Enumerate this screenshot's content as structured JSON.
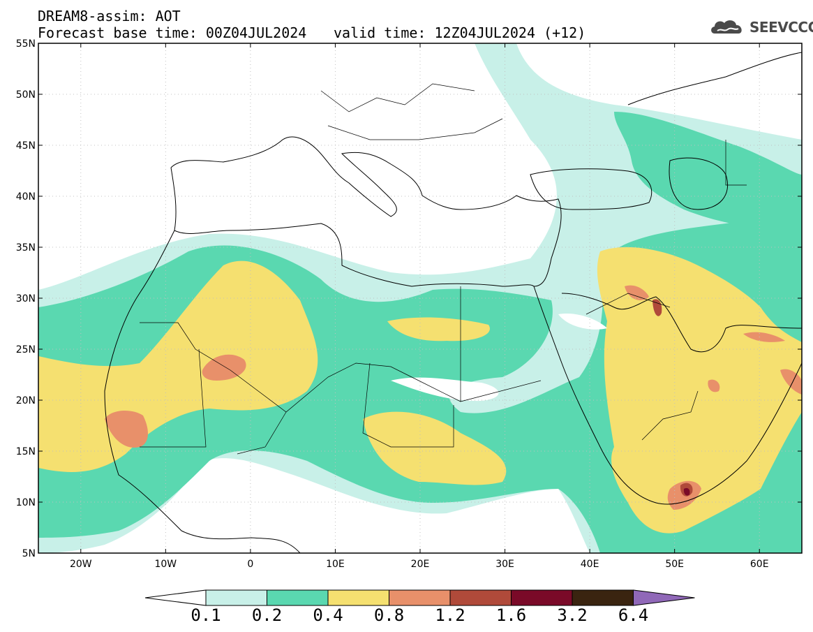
{
  "header": {
    "title": "DREAM8-assim: AOT",
    "base_time": "Forecast base time: 00Z04JUL2024",
    "valid_time": "valid time: 12Z04JUL2024 (+12)"
  },
  "logo": {
    "text": "SEEVCCC"
  },
  "axes": {
    "lat_labels": [
      "55N",
      "50N",
      "45N",
      "40N",
      "35N",
      "30N",
      "25N",
      "20N",
      "15N",
      "10N",
      "5N"
    ],
    "lon_labels": [
      "20W",
      "10W",
      "0",
      "10E",
      "20E",
      "30E",
      "40E",
      "50E",
      "60E"
    ]
  },
  "colorbar": {
    "labels": [
      "0.1",
      "0.2",
      "0.4",
      "0.8",
      "1.2",
      "1.6",
      "3.2",
      "6.4"
    ],
    "colors": [
      "#ffffff",
      "#c8f0e8",
      "#5ad8b0",
      "#f5e070",
      "#e8906a",
      "#b04a3a",
      "#7a0a28",
      "#3a2410",
      "#9068b8"
    ]
  },
  "colors": {
    "c1": "#c8f0e8",
    "c2": "#5ad8b0",
    "c3": "#f5e070",
    "c4": "#e8906a",
    "c5": "#b04a3a",
    "c6": "#7a0a28"
  }
}
